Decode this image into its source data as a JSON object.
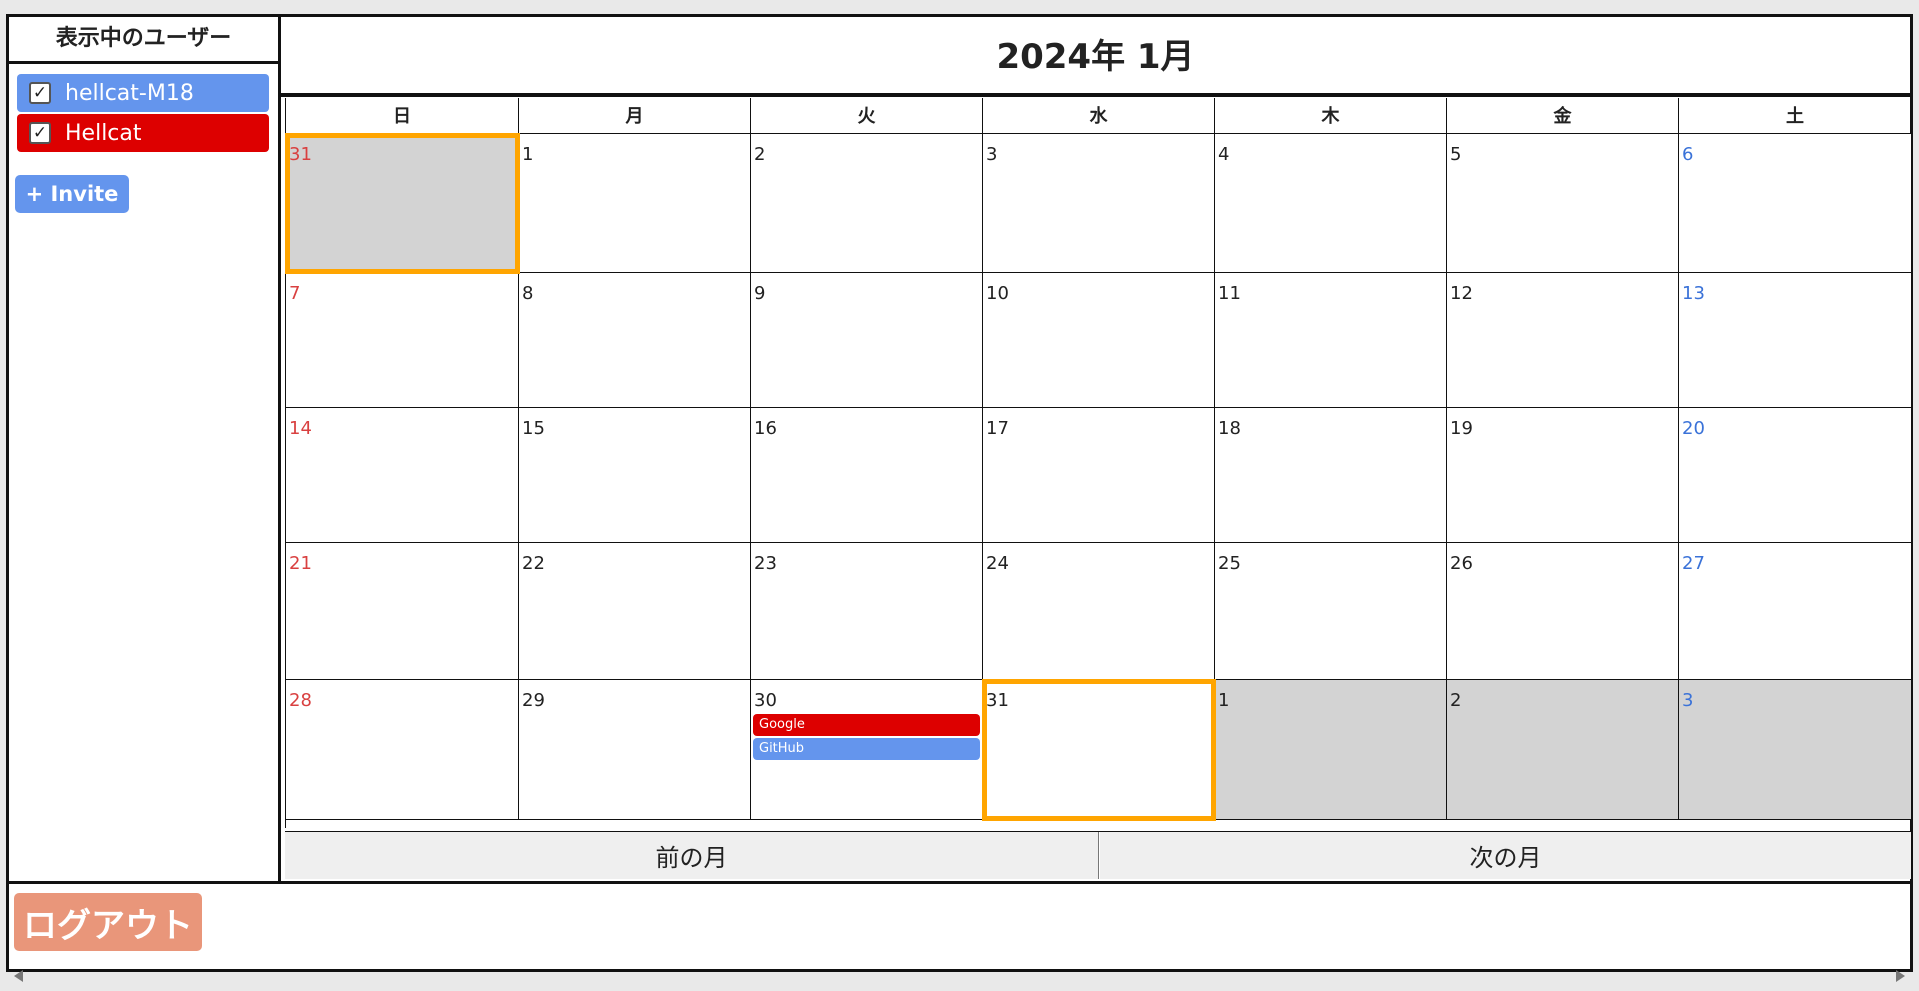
{
  "sidebar": {
    "title": "表示中のユーザー",
    "users": [
      {
        "label": "hellcat-M18",
        "color": "#6495ed",
        "checked": true
      },
      {
        "label": "Hellcat",
        "color": "#dd0000",
        "checked": true
      }
    ],
    "invite_label": "+ Invite"
  },
  "calendar": {
    "title": "2024年 1月",
    "weekdays": [
      "日",
      "月",
      "火",
      "水",
      "木",
      "金",
      "土"
    ],
    "weeks": [
      [
        {
          "d": "31",
          "outside": true
        },
        {
          "d": "1"
        },
        {
          "d": "2"
        },
        {
          "d": "3"
        },
        {
          "d": "4"
        },
        {
          "d": "5"
        },
        {
          "d": "6"
        }
      ],
      [
        {
          "d": "7"
        },
        {
          "d": "8"
        },
        {
          "d": "9"
        },
        {
          "d": "10"
        },
        {
          "d": "11"
        },
        {
          "d": "12"
        },
        {
          "d": "13"
        }
      ],
      [
        {
          "d": "14"
        },
        {
          "d": "15"
        },
        {
          "d": "16"
        },
        {
          "d": "17"
        },
        {
          "d": "18"
        },
        {
          "d": "19"
        },
        {
          "d": "20"
        }
      ],
      [
        {
          "d": "21"
        },
        {
          "d": "22"
        },
        {
          "d": "23"
        },
        {
          "d": "24"
        },
        {
          "d": "25"
        },
        {
          "d": "26"
        },
        {
          "d": "27"
        }
      ],
      [
        {
          "d": "28"
        },
        {
          "d": "29"
        },
        {
          "d": "30",
          "events": [
            {
              "label": "Google",
              "color": "#dd0000"
            },
            {
              "label": "GitHub",
              "color": "#6495ed"
            }
          ]
        },
        {
          "d": "31"
        },
        {
          "d": "1",
          "outside": true
        },
        {
          "d": "2",
          "outside": true
        },
        {
          "d": "3",
          "outside": true
        }
      ]
    ],
    "highlighted": [
      [
        0,
        0
      ],
      [
        4,
        3
      ]
    ],
    "prev_label": "前の月",
    "next_label": "次の月",
    "colors": {
      "sunday": "#d94040",
      "saturday": "#3a72d8",
      "highlight": "#ffa500",
      "outside": "#d3d3d3"
    }
  },
  "footer": {
    "logout_label": "ログアウト"
  }
}
